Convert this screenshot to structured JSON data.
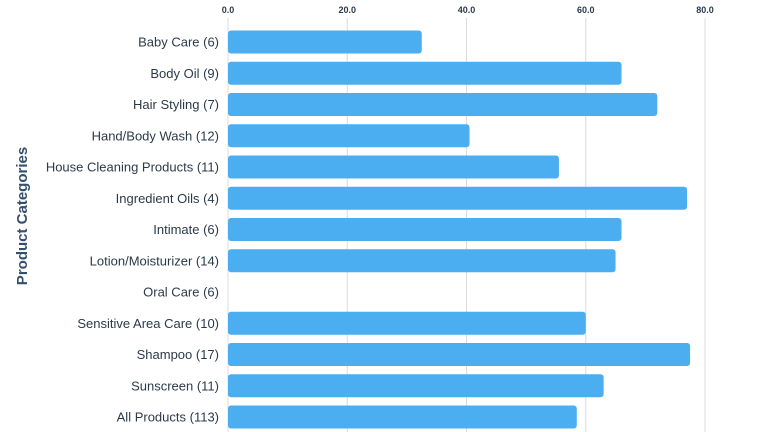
{
  "chart_data": {
    "type": "bar",
    "orientation": "horizontal",
    "ylabel": "Product Categories",
    "xlabel": "",
    "xlim": [
      0,
      80
    ],
    "x_ticks": [
      "0.0",
      "20.0",
      "40.0",
      "60.0",
      "80.0"
    ],
    "x_tick_values": [
      0,
      20,
      40,
      60,
      80
    ],
    "x_axis_position": "top",
    "grid": true,
    "bar_color": "#4aaef0",
    "categories": [
      "Baby Care (6)",
      "Body Oil (9)",
      "Hair Styling (7)",
      "Hand/Body Wash (12)",
      "House Cleaning Products (11)",
      "Ingredient Oils (4)",
      "Intimate (6)",
      "Lotion/Moisturizer (14)",
      "Oral Care (6)",
      "Sensitive Area Care (10)",
      "Shampoo (17)",
      "Sunscreen (11)",
      "All Products (113)"
    ],
    "values": [
      32.5,
      66,
      72,
      40.5,
      55.5,
      77,
      66,
      65,
      0,
      60,
      77.5,
      63,
      58.5
    ]
  }
}
